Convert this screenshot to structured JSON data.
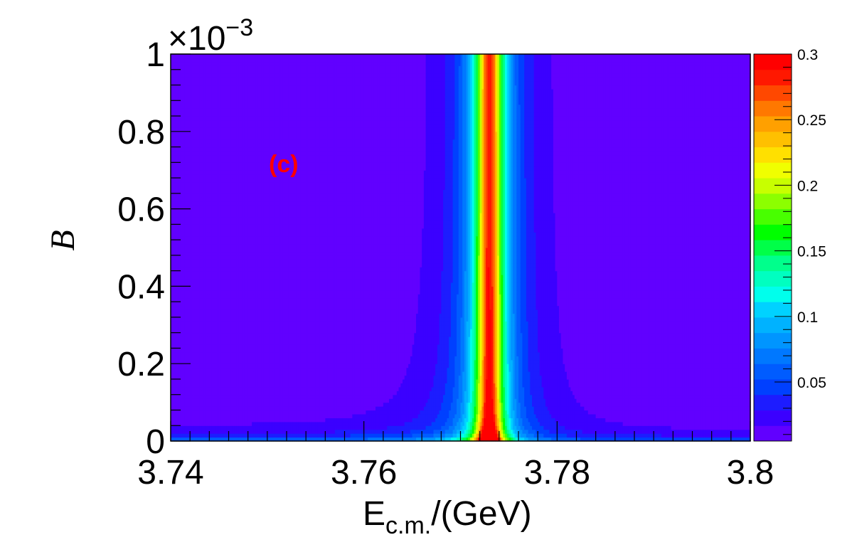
{
  "chart_data": {
    "type": "heatmap",
    "panel_label": "(c)",
    "xlabel_main": "E",
    "xlabel_sub": "c.m.",
    "xlabel_unit": "/(GeV)",
    "ylabel": "B",
    "y_exponent_base": "×10",
    "y_exponent_power": "−3",
    "xlim": [
      3.74,
      3.8
    ],
    "ylim": [
      0,
      1
    ],
    "x_ticks": [
      {
        "value": 3.74,
        "label": "3.74"
      },
      {
        "value": 3.76,
        "label": "3.76"
      },
      {
        "value": 3.78,
        "label": "3.78"
      },
      {
        "value": 3.8,
        "label": "3.8"
      }
    ],
    "y_ticks": [
      {
        "value": 0.0,
        "label": "0"
      },
      {
        "value": 0.2,
        "label": "0.2"
      },
      {
        "value": 0.4,
        "label": "0.4"
      },
      {
        "value": 0.6,
        "label": "0.6"
      },
      {
        "value": 0.8,
        "label": "0.8"
      },
      {
        "value": 1.0,
        "label": "1"
      }
    ],
    "z_range": [
      0.005,
      0.3
    ],
    "colorbar_ticks": [
      {
        "value": 0.05,
        "label": "0.05"
      },
      {
        "value": 0.1,
        "label": "0.1"
      },
      {
        "value": 0.15,
        "label": "0.15"
      },
      {
        "value": 0.2,
        "label": "0.2"
      },
      {
        "value": 0.25,
        "label": "0.25"
      },
      {
        "value": 0.3,
        "label": "0.3"
      }
    ],
    "palette": [
      "#6100ff",
      "#3b00ff",
      "#1d1cff",
      "#0040ff",
      "#005cff",
      "#0078ff",
      "#0095ff",
      "#00b2ff",
      "#00d2ff",
      "#00ffec",
      "#00ffc0",
      "#00ff8c",
      "#00ff48",
      "#00ff00",
      "#48ff00",
      "#8cff00",
      "#c8ff00",
      "#f0ff00",
      "#ffe000",
      "#ffc000",
      "#ffa000",
      "#ff7800",
      "#ff4800",
      "#ff1800",
      "#ff0000"
    ],
    "peak_x": 3.773,
    "description": "Resonance peak near 3.773 GeV; value increases sharply toward peak and toward B=0"
  }
}
